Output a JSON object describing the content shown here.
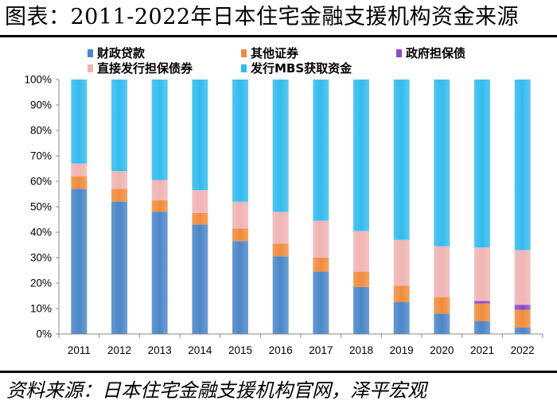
{
  "title": "图表：2011-2022年日本住宅金融支援机构资金来源",
  "source": "资料来源：日本住宅金融支援机构官网，泽平宏观",
  "chart_data": {
    "type": "bar",
    "stacked": true,
    "categories": [
      "2011",
      "2012",
      "2013",
      "2014",
      "2015",
      "2016",
      "2017",
      "2018",
      "2019",
      "2020",
      "2021",
      "2022"
    ],
    "ylim": [
      0,
      100
    ],
    "yticks": [
      "0%",
      "10%",
      "20%",
      "30%",
      "40%",
      "50%",
      "60%",
      "70%",
      "80%",
      "90%",
      "100%"
    ],
    "grid": false,
    "legend_position": "top",
    "series": [
      {
        "name": "财政贷款",
        "color": "#4a86c8",
        "values": [
          57,
          52,
          48,
          43,
          36.5,
          30.5,
          24.5,
          18.5,
          12.5,
          8,
          5,
          2.5
        ]
      },
      {
        "name": "其他证券",
        "color": "#f08c3c",
        "values": [
          5,
          5,
          4.5,
          4.5,
          5,
          5,
          5.5,
          6,
          6.5,
          6.5,
          7,
          7
        ]
      },
      {
        "name": "政府担保债",
        "color": "#8c48c8",
        "values": [
          0,
          0,
          0,
          0,
          0,
          0,
          0,
          0,
          0,
          0,
          1,
          2
        ]
      },
      {
        "name": "直接发行担保债券",
        "color": "#f0b4b4",
        "values": [
          5,
          7,
          8,
          9,
          10.5,
          12.5,
          14.5,
          16,
          18,
          20,
          21,
          21.5
        ]
      },
      {
        "name": "发行MBS获取资金",
        "color": "#33bbee",
        "values": [
          33,
          36,
          39.5,
          43.5,
          48,
          52,
          55.5,
          59.5,
          63,
          65.5,
          66,
          67
        ]
      }
    ]
  }
}
